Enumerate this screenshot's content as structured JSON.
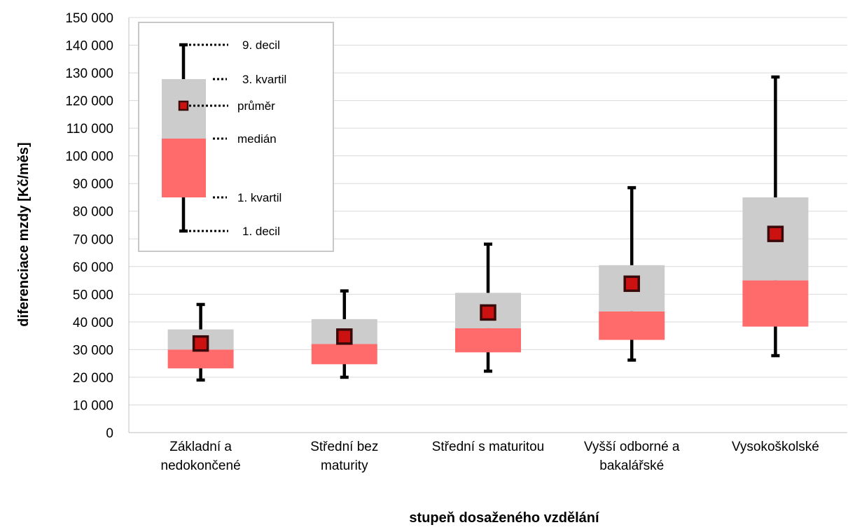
{
  "chart_data": {
    "type": "box",
    "ylabel": "diferenciace mzdy [Kč/měs]",
    "xlabel": "stupeň dosaženého vzdělání",
    "ylim": [
      0,
      150000
    ],
    "ytick_step": 10000,
    "ytick_labels": [
      "0",
      "10 000",
      "20 000",
      "30 000",
      "40 000",
      "50 000",
      "60 000",
      "70 000",
      "80 000",
      "90 000",
      "100 000",
      "110 000",
      "120 000",
      "130 000",
      "140 000",
      "150 000"
    ],
    "categories": [
      [
        "Základní a",
        "nedokončené"
      ],
      [
        "Střední bez",
        "maturity"
      ],
      [
        "Střední s maturitou"
      ],
      [
        "Vyšší odborné a",
        "bakalářské"
      ],
      [
        "Vysokoškolské"
      ]
    ],
    "series": [
      {
        "p10": 19000,
        "q1": 23200,
        "median": 30000,
        "q3": 37300,
        "p90": 46300,
        "mean": 32200
      },
      {
        "p10": 20000,
        "q1": 24700,
        "median": 32000,
        "q3": 41000,
        "p90": 51200,
        "mean": 34700
      },
      {
        "p10": 22200,
        "q1": 29000,
        "median": 37700,
        "q3": 50500,
        "p90": 68100,
        "mean": 43400
      },
      {
        "p10": 26200,
        "q1": 33500,
        "median": 43800,
        "q3": 60500,
        "p90": 88500,
        "mean": 53800
      },
      {
        "p10": 27800,
        "q1": 38300,
        "median": 55000,
        "q3": 85000,
        "p90": 128500,
        "mean": 71800
      }
    ],
    "legend": {
      "position": "top-left",
      "labels": {
        "p90": "9. decil",
        "q3": "3. kvartil",
        "mean": "průměr",
        "median": "medián",
        "q1": "1. kvartil",
        "p10": "1. decil"
      }
    },
    "colors": {
      "lower_box": "#ff6b6b",
      "upper_box": "#cccccc",
      "whisker": "#000000",
      "mean_marker": "#cc1111",
      "mean_marker_border": "#3a0a0a",
      "gridline": "#d9d9d9"
    },
    "grid": true
  }
}
